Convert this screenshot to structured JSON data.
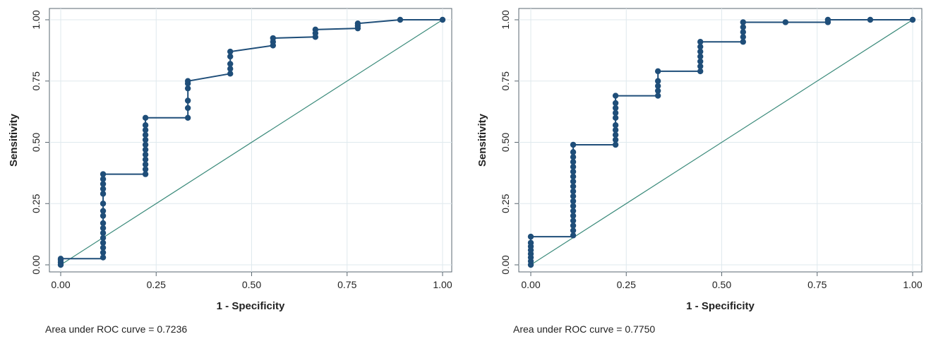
{
  "colors": {
    "background": "#ffffff",
    "grid": "#dfe9ee",
    "frame": "#5a6770",
    "curve": "#1f4e79",
    "reference": "#3a8a7a",
    "text": "#222222"
  },
  "chart_data": [
    {
      "type": "line",
      "xlabel": "1 - Specificity",
      "ylabel": "Sensitivity",
      "xlim": [
        0,
        1
      ],
      "ylim": [
        0,
        1
      ],
      "xticks": [
        "0.00",
        "0.25",
        "0.50",
        "0.75",
        "1.00"
      ],
      "yticks": [
        "0.00",
        "0.25",
        "0.50",
        "0.75",
        "1.00"
      ],
      "grid": true,
      "annotation": "Area under ROC curve = 0.7236",
      "reference_line": [
        [
          0,
          0
        ],
        [
          1,
          1
        ]
      ],
      "curve": [
        [
          0,
          0
        ],
        [
          0,
          0.025
        ],
        [
          0.111,
          0.025
        ],
        [
          0.111,
          0.37
        ],
        [
          0.222,
          0.37
        ],
        [
          0.222,
          0.6
        ],
        [
          0.333,
          0.6
        ],
        [
          0.333,
          0.75
        ],
        [
          0.444,
          0.78
        ],
        [
          0.444,
          0.87
        ],
        [
          0.556,
          0.895
        ],
        [
          0.556,
          0.925
        ],
        [
          0.667,
          0.93
        ],
        [
          0.667,
          0.96
        ],
        [
          0.778,
          0.965
        ],
        [
          0.778,
          0.985
        ],
        [
          0.889,
          1.0
        ],
        [
          1.0,
          1.0
        ]
      ],
      "points": [
        [
          0,
          0
        ],
        [
          0,
          0.01
        ],
        [
          0,
          0.02
        ],
        [
          0,
          0.025
        ],
        [
          0.111,
          0.03
        ],
        [
          0.111,
          0.05
        ],
        [
          0.111,
          0.07
        ],
        [
          0.111,
          0.09
        ],
        [
          0.111,
          0.11
        ],
        [
          0.111,
          0.13
        ],
        [
          0.111,
          0.15
        ],
        [
          0.111,
          0.17
        ],
        [
          0.111,
          0.2
        ],
        [
          0.111,
          0.22
        ],
        [
          0.111,
          0.25
        ],
        [
          0.111,
          0.29
        ],
        [
          0.111,
          0.31
        ],
        [
          0.111,
          0.33
        ],
        [
          0.111,
          0.35
        ],
        [
          0.111,
          0.37
        ],
        [
          0.222,
          0.37
        ],
        [
          0.222,
          0.39
        ],
        [
          0.222,
          0.41
        ],
        [
          0.222,
          0.43
        ],
        [
          0.222,
          0.45
        ],
        [
          0.222,
          0.47
        ],
        [
          0.222,
          0.49
        ],
        [
          0.222,
          0.51
        ],
        [
          0.222,
          0.53
        ],
        [
          0.222,
          0.55
        ],
        [
          0.222,
          0.57
        ],
        [
          0.222,
          0.6
        ],
        [
          0.333,
          0.6
        ],
        [
          0.333,
          0.64
        ],
        [
          0.333,
          0.67
        ],
        [
          0.333,
          0.72
        ],
        [
          0.333,
          0.74
        ],
        [
          0.333,
          0.75
        ],
        [
          0.444,
          0.78
        ],
        [
          0.444,
          0.8
        ],
        [
          0.444,
          0.82
        ],
        [
          0.444,
          0.85
        ],
        [
          0.444,
          0.87
        ],
        [
          0.556,
          0.895
        ],
        [
          0.556,
          0.91
        ],
        [
          0.556,
          0.925
        ],
        [
          0.667,
          0.93
        ],
        [
          0.667,
          0.945
        ],
        [
          0.667,
          0.96
        ],
        [
          0.778,
          0.965
        ],
        [
          0.778,
          0.975
        ],
        [
          0.778,
          0.985
        ],
        [
          0.889,
          1.0
        ],
        [
          1.0,
          1.0
        ]
      ]
    },
    {
      "type": "line",
      "xlabel": "1 - Specificity",
      "ylabel": "Sensitivity",
      "xlim": [
        0,
        1
      ],
      "ylim": [
        0,
        1
      ],
      "xticks": [
        "0.00",
        "0.25",
        "0.50",
        "0.75",
        "1.00"
      ],
      "yticks": [
        "0.00",
        "0.25",
        "0.50",
        "0.75",
        "1.00"
      ],
      "grid": true,
      "annotation": "Area under ROC curve = 0.7750",
      "reference_line": [
        [
          0,
          0
        ],
        [
          1,
          1
        ]
      ],
      "curve": [
        [
          0,
          0
        ],
        [
          0,
          0.115
        ],
        [
          0.111,
          0.115
        ],
        [
          0.111,
          0.49
        ],
        [
          0.222,
          0.49
        ],
        [
          0.222,
          0.69
        ],
        [
          0.333,
          0.69
        ],
        [
          0.333,
          0.79
        ],
        [
          0.444,
          0.79
        ],
        [
          0.444,
          0.91
        ],
        [
          0.556,
          0.91
        ],
        [
          0.556,
          0.99
        ],
        [
          0.667,
          0.99
        ],
        [
          0.778,
          0.99
        ],
        [
          0.778,
          1.0
        ],
        [
          0.889,
          1.0
        ],
        [
          1.0,
          1.0
        ]
      ],
      "points": [
        [
          0,
          0.0
        ],
        [
          0,
          0.015
        ],
        [
          0,
          0.03
        ],
        [
          0,
          0.045
        ],
        [
          0,
          0.06
        ],
        [
          0,
          0.075
        ],
        [
          0,
          0.09
        ],
        [
          0,
          0.115
        ],
        [
          0.111,
          0.12
        ],
        [
          0.111,
          0.14
        ],
        [
          0.111,
          0.16
        ],
        [
          0.111,
          0.18
        ],
        [
          0.111,
          0.2
        ],
        [
          0.111,
          0.22
        ],
        [
          0.111,
          0.24
        ],
        [
          0.111,
          0.26
        ],
        [
          0.111,
          0.28
        ],
        [
          0.111,
          0.3
        ],
        [
          0.111,
          0.32
        ],
        [
          0.111,
          0.34
        ],
        [
          0.111,
          0.36
        ],
        [
          0.111,
          0.38
        ],
        [
          0.111,
          0.4
        ],
        [
          0.111,
          0.42
        ],
        [
          0.111,
          0.44
        ],
        [
          0.111,
          0.46
        ],
        [
          0.111,
          0.49
        ],
        [
          0.222,
          0.49
        ],
        [
          0.222,
          0.51
        ],
        [
          0.222,
          0.53
        ],
        [
          0.222,
          0.55
        ],
        [
          0.222,
          0.57
        ],
        [
          0.222,
          0.6
        ],
        [
          0.222,
          0.62
        ],
        [
          0.222,
          0.64
        ],
        [
          0.222,
          0.66
        ],
        [
          0.222,
          0.69
        ],
        [
          0.333,
          0.69
        ],
        [
          0.333,
          0.71
        ],
        [
          0.333,
          0.73
        ],
        [
          0.333,
          0.75
        ],
        [
          0.333,
          0.79
        ],
        [
          0.444,
          0.79
        ],
        [
          0.444,
          0.81
        ],
        [
          0.444,
          0.83
        ],
        [
          0.444,
          0.85
        ],
        [
          0.444,
          0.87
        ],
        [
          0.444,
          0.89
        ],
        [
          0.444,
          0.91
        ],
        [
          0.556,
          0.91
        ],
        [
          0.556,
          0.93
        ],
        [
          0.556,
          0.95
        ],
        [
          0.556,
          0.97
        ],
        [
          0.556,
          0.99
        ],
        [
          0.667,
          0.99
        ],
        [
          0.778,
          0.99
        ],
        [
          0.778,
          1.0
        ],
        [
          0.889,
          1.0
        ],
        [
          1.0,
          1.0
        ]
      ]
    }
  ]
}
